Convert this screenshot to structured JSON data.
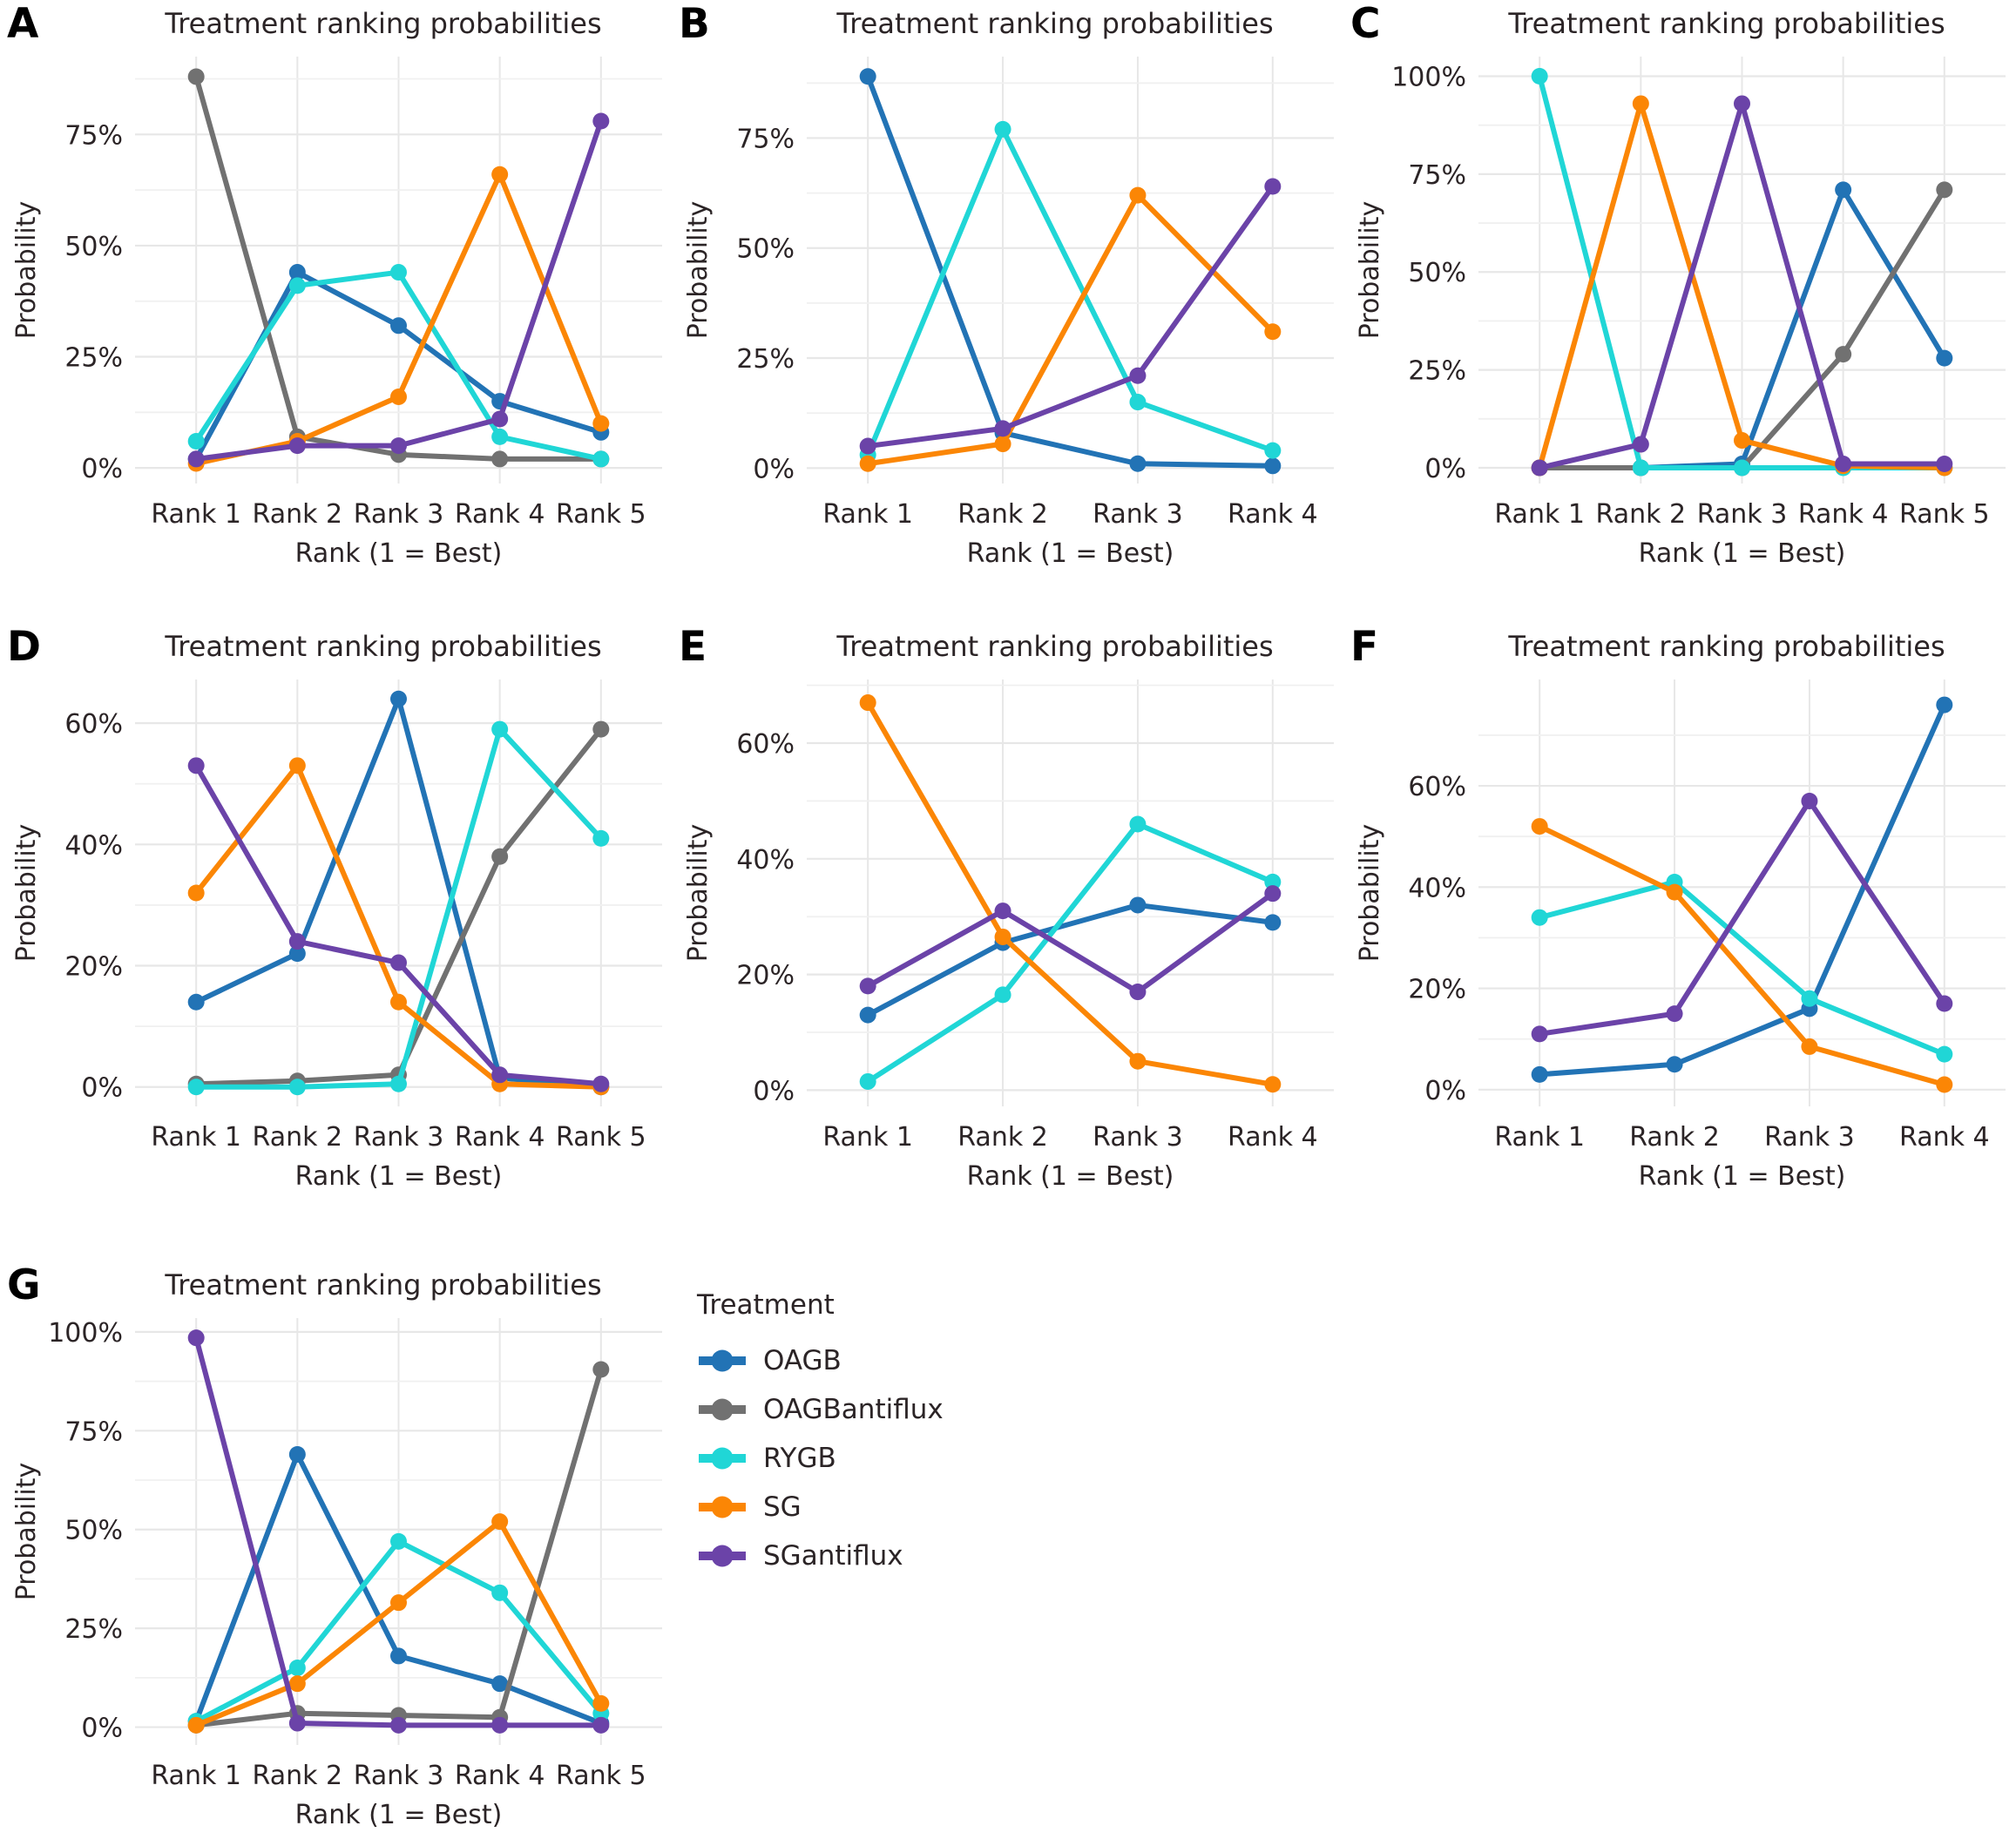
{
  "legend": {
    "title": "Treatment",
    "items": [
      {
        "label": "OAGB",
        "color": "#2273b5"
      },
      {
        "label": "OAGBantiflux",
        "color": "#717171"
      },
      {
        "label": "RYGB",
        "color": "#20d6d6"
      },
      {
        "label": "SG",
        "color": "#fb8605"
      },
      {
        "label": "SGantiflux",
        "color": "#6b43a8"
      }
    ]
  },
  "style": {
    "grid_major_color": "#e7e7e7",
    "grid_minor_color": "#f0f0f0",
    "text_color": "#2b2426"
  },
  "chart_data": [
    {
      "label": "A",
      "type": "line",
      "title": "Treatment ranking probabilities",
      "xlabel": "Rank (1 = Best)",
      "ylabel": "Probability",
      "categories": [
        "Rank 1",
        "Rank 2",
        "Rank 3",
        "Rank 4",
        "Rank 5"
      ],
      "yticks": [
        0,
        25,
        50,
        75
      ],
      "ytick_suffix": "%",
      "ylim": [
        -3.5,
        92.5
      ],
      "grid": true,
      "legend_position": "figure-bottom-middle",
      "series": [
        {
          "name": "OAGB",
          "values": [
            2,
            44,
            32,
            15,
            8
          ]
        },
        {
          "name": "OAGBantiflux",
          "values": [
            88,
            7,
            3,
            2,
            2
          ]
        },
        {
          "name": "RYGB",
          "values": [
            6,
            41,
            44,
            7,
            2
          ]
        },
        {
          "name": "SG",
          "values": [
            1,
            6,
            16,
            66,
            10
          ]
        },
        {
          "name": "SGantiflux",
          "values": [
            2,
            5,
            5,
            11,
            78
          ]
        }
      ]
    },
    {
      "label": "B",
      "type": "line",
      "title": "Treatment ranking probabilities",
      "xlabel": "Rank (1 = Best)",
      "ylabel": "Probability",
      "categories": [
        "Rank 1",
        "Rank 2",
        "Rank 3",
        "Rank 4"
      ],
      "yticks": [
        0,
        25,
        50,
        75
      ],
      "ytick_suffix": "%",
      "ylim": [
        -3.5,
        93.5
      ],
      "grid": true,
      "series": [
        {
          "name": "OAGB",
          "values": [
            89,
            8,
            1,
            0.5
          ]
        },
        {
          "name": "RYGB",
          "values": [
            3,
            77,
            15,
            4
          ]
        },
        {
          "name": "SG",
          "values": [
            1,
            5.5,
            62,
            31
          ]
        },
        {
          "name": "SGantiflux",
          "values": [
            5,
            9,
            21,
            64
          ]
        }
      ]
    },
    {
      "label": "C",
      "type": "line",
      "title": "Treatment ranking probabilities",
      "xlabel": "Rank (1 = Best)",
      "ylabel": "Probability",
      "categories": [
        "Rank 1",
        "Rank 2",
        "Rank 3",
        "Rank 4",
        "Rank 5"
      ],
      "yticks": [
        0,
        25,
        50,
        75,
        100
      ],
      "ytick_suffix": "%",
      "ylim": [
        -4,
        105
      ],
      "grid": true,
      "series": [
        {
          "name": "OAGB",
          "values": [
            0,
            0,
            1,
            71,
            28
          ]
        },
        {
          "name": "OAGBantiflux",
          "values": [
            0,
            0,
            0,
            29,
            71
          ]
        },
        {
          "name": "RYGB",
          "values": [
            100,
            0,
            0,
            0,
            0
          ]
        },
        {
          "name": "SG",
          "values": [
            0,
            93,
            7,
            0.5,
            0
          ]
        },
        {
          "name": "SGantiflux",
          "values": [
            0,
            6,
            93,
            1,
            1
          ]
        }
      ]
    },
    {
      "label": "D",
      "type": "line",
      "title": "Treatment ranking probabilities",
      "xlabel": "Rank (1 = Best)",
      "ylabel": "Probability",
      "categories": [
        "Rank 1",
        "Rank 2",
        "Rank 3",
        "Rank 4",
        "Rank 5"
      ],
      "yticks": [
        0,
        20,
        40,
        60
      ],
      "ytick_suffix": "%",
      "ylim": [
        -3.2,
        67.2
      ],
      "grid": true,
      "series": [
        {
          "name": "OAGB",
          "values": [
            14,
            22,
            64,
            1.5,
            0
          ]
        },
        {
          "name": "OAGBantiflux",
          "values": [
            0.5,
            1,
            2,
            38,
            59
          ]
        },
        {
          "name": "RYGB",
          "values": [
            0,
            0,
            0.5,
            59,
            41
          ]
        },
        {
          "name": "SG",
          "values": [
            32,
            53,
            14,
            0.5,
            0
          ]
        },
        {
          "name": "SGantiflux",
          "values": [
            53,
            24,
            20.5,
            2,
            0.5
          ]
        }
      ]
    },
    {
      "label": "E",
      "type": "line",
      "title": "Treatment ranking probabilities",
      "xlabel": "Rank (1 = Best)",
      "ylabel": "Probability",
      "categories": [
        "Rank 1",
        "Rank 2",
        "Rank 3",
        "Rank 4"
      ],
      "yticks": [
        0,
        20,
        40,
        60
      ],
      "ytick_suffix": "%",
      "ylim": [
        -2.8,
        71
      ],
      "grid": true,
      "series": [
        {
          "name": "OAGB",
          "values": [
            13,
            25.5,
            32,
            29
          ]
        },
        {
          "name": "RYGB",
          "values": [
            1.5,
            16.5,
            46,
            36
          ]
        },
        {
          "name": "SG",
          "values": [
            67,
            26.5,
            5,
            1
          ]
        },
        {
          "name": "SGantiflux",
          "values": [
            18,
            31,
            17,
            34
          ]
        }
      ]
    },
    {
      "label": "F",
      "type": "line",
      "title": "Treatment ranking probabilities",
      "xlabel": "Rank (1 = Best)",
      "ylabel": "Probability",
      "categories": [
        "Rank 1",
        "Rank 2",
        "Rank 3",
        "Rank 4"
      ],
      "yticks": [
        0,
        20,
        40,
        60
      ],
      "ytick_suffix": "%",
      "ylim": [
        -3.3,
        81
      ],
      "grid": true,
      "series": [
        {
          "name": "OAGB",
          "values": [
            3,
            5,
            16,
            76
          ]
        },
        {
          "name": "RYGB",
          "values": [
            34,
            41,
            18,
            7
          ]
        },
        {
          "name": "SG",
          "values": [
            52,
            39,
            8.5,
            1
          ]
        },
        {
          "name": "SGantiflux",
          "values": [
            11,
            15,
            57,
            17
          ]
        }
      ]
    },
    {
      "label": "G",
      "type": "line",
      "title": "Treatment ranking probabilities",
      "xlabel": "Rank (1 = Best)",
      "ylabel": "Probability",
      "categories": [
        "Rank 1",
        "Rank 2",
        "Rank 3",
        "Rank 4",
        "Rank 5"
      ],
      "yticks": [
        0,
        25,
        50,
        75,
        100
      ],
      "ytick_suffix": "%",
      "ylim": [
        -4.5,
        103.5
      ],
      "grid": true,
      "series": [
        {
          "name": "OAGB",
          "values": [
            1.5,
            69,
            18,
            11,
            1
          ]
        },
        {
          "name": "OAGBantiflux",
          "values": [
            0.5,
            3.5,
            3,
            2.5,
            90.5
          ]
        },
        {
          "name": "RYGB",
          "values": [
            1.5,
            15,
            47,
            34,
            3.5
          ]
        },
        {
          "name": "SG",
          "values": [
            0.5,
            11,
            31.5,
            52,
            6
          ]
        },
        {
          "name": "SGantiflux",
          "values": [
            98.5,
            1,
            0.5,
            0.5,
            0.5
          ]
        }
      ]
    }
  ]
}
